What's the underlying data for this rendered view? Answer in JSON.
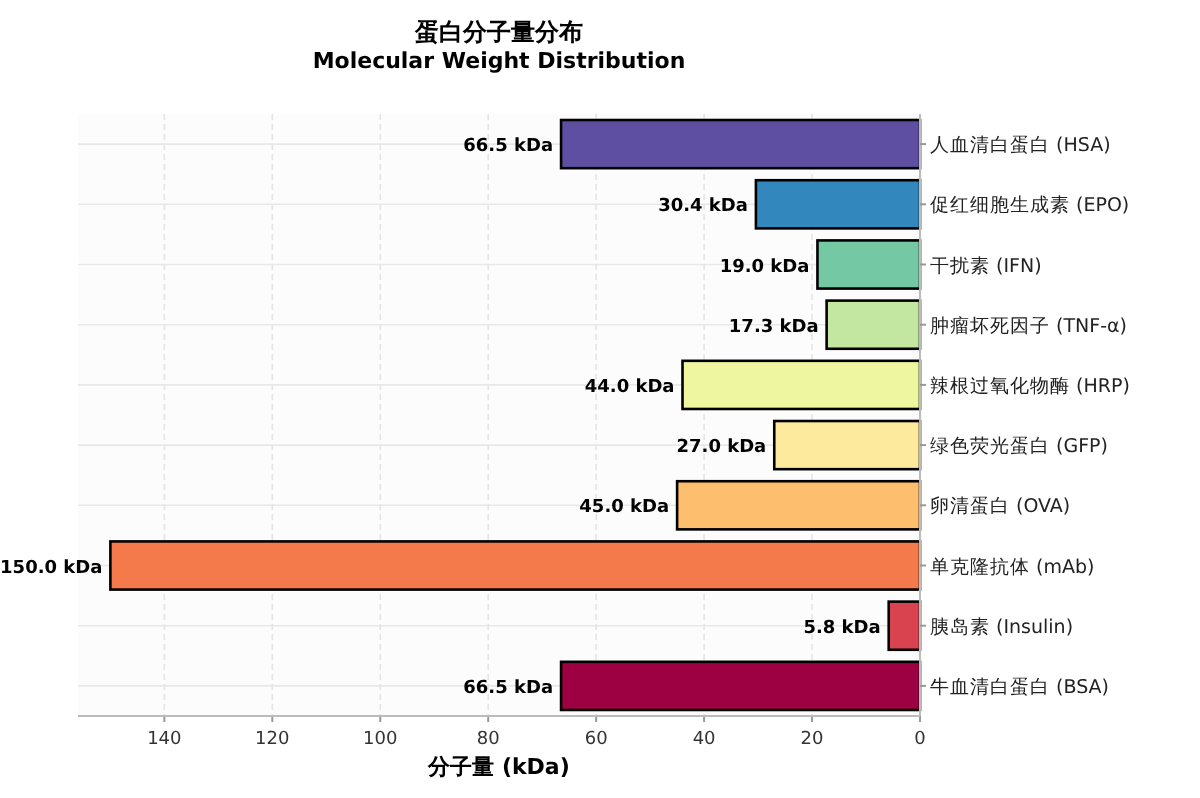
{
  "chart_data": {
    "type": "bar",
    "orientation": "horizontal",
    "title": "蛋白分子量分布",
    "subtitle": "Molecular Weight Distribution",
    "xlabel": "分子量 (kDa)",
    "categories": [
      "人血清白蛋白 (HSA)",
      "促红细胞生成素 (EPO)",
      "干扰素 (IFN)",
      "肿瘤坏死因子 (TNF-α)",
      "辣根过氧化物酶 (HRP)",
      "绿色荧光蛋白 (GFP)",
      "卵清蛋白 (OVA)",
      "单克隆抗体 (mAb)",
      "胰岛素 (Insulin)",
      "牛血清白蛋白 (BSA)"
    ],
    "values": [
      66.5,
      30.4,
      19.0,
      17.3,
      44.0,
      27.0,
      45.0,
      150.0,
      5.8,
      66.5
    ],
    "value_labels": [
      "66.5 kDa",
      "30.4 kDa",
      "19.0 kDa",
      "17.3 kDa",
      "44.0 kDa",
      "27.0 kDa",
      "45.0 kDa",
      "150.0 kDa",
      "5.8 kDa",
      "66.5 kDa"
    ],
    "colors": [
      "#5e4fa2",
      "#3288bd",
      "#74c8a4",
      "#c3e6a0",
      "#eef7a0",
      "#feea9c",
      "#fdbe6e",
      "#f57a4b",
      "#d8434f",
      "#9e0142"
    ],
    "xlim": [
      156,
      0
    ],
    "xticks": [
      0,
      20,
      40,
      60,
      80,
      100,
      120,
      140
    ],
    "grid": true
  }
}
